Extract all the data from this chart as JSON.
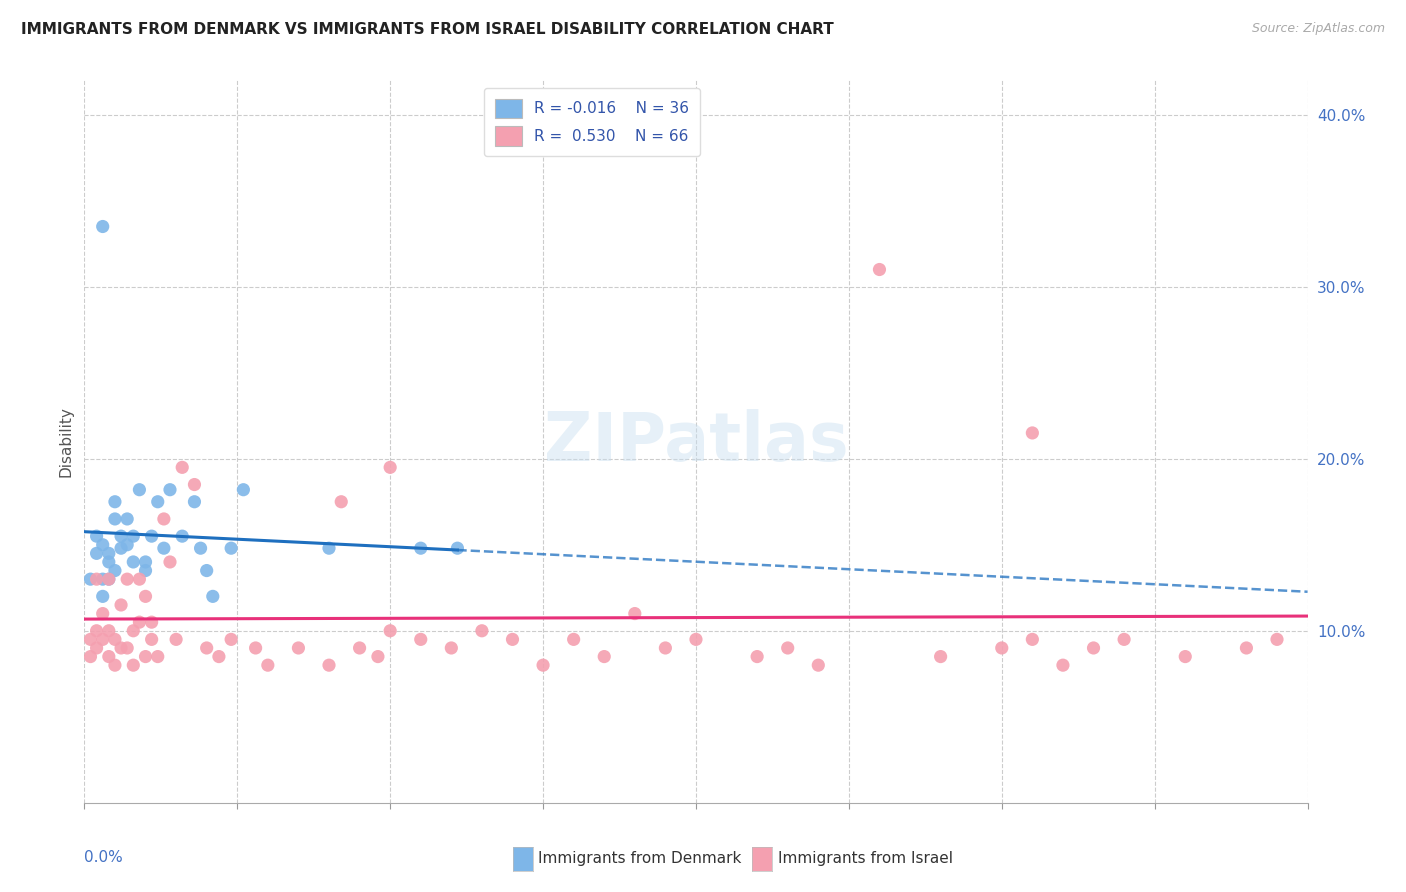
{
  "title": "IMMIGRANTS FROM DENMARK VS IMMIGRANTS FROM ISRAEL DISABILITY CORRELATION CHART",
  "source": "Source: ZipAtlas.com",
  "ylabel": "Disability",
  "legend_label1": "Immigrants from Denmark",
  "legend_label2": "Immigrants from Israel",
  "r1": -0.016,
  "n1": 36,
  "r2": 0.53,
  "n2": 66,
  "color_denmark": "#7EB6E8",
  "color_israel": "#F4A0B0",
  "line_denmark": "#1E6FBF",
  "line_israel": "#E8317A",
  "xlim": [
    0.0,
    0.2
  ],
  "ylim": [
    0.0,
    0.42
  ],
  "denmark_x": [
    0.001,
    0.002,
    0.002,
    0.003,
    0.003,
    0.003,
    0.004,
    0.004,
    0.004,
    0.005,
    0.005,
    0.005,
    0.006,
    0.006,
    0.007,
    0.007,
    0.008,
    0.008,
    0.009,
    0.01,
    0.01,
    0.011,
    0.012,
    0.013,
    0.014,
    0.016,
    0.018,
    0.019,
    0.02,
    0.021,
    0.024,
    0.026,
    0.04,
    0.055,
    0.061,
    0.003
  ],
  "denmark_y": [
    0.13,
    0.155,
    0.145,
    0.15,
    0.13,
    0.12,
    0.14,
    0.145,
    0.13,
    0.175,
    0.165,
    0.135,
    0.155,
    0.148,
    0.165,
    0.15,
    0.14,
    0.155,
    0.182,
    0.14,
    0.135,
    0.155,
    0.175,
    0.148,
    0.182,
    0.155,
    0.175,
    0.148,
    0.135,
    0.12,
    0.148,
    0.182,
    0.148,
    0.148,
    0.148,
    0.335
  ],
  "israel_x": [
    0.001,
    0.001,
    0.002,
    0.002,
    0.002,
    0.003,
    0.003,
    0.004,
    0.004,
    0.004,
    0.005,
    0.005,
    0.006,
    0.006,
    0.007,
    0.007,
    0.008,
    0.008,
    0.009,
    0.009,
    0.01,
    0.01,
    0.011,
    0.011,
    0.012,
    0.013,
    0.014,
    0.015,
    0.016,
    0.018,
    0.02,
    0.022,
    0.024,
    0.028,
    0.03,
    0.035,
    0.04,
    0.042,
    0.045,
    0.048,
    0.05,
    0.055,
    0.06,
    0.065,
    0.07,
    0.075,
    0.08,
    0.085,
    0.09,
    0.095,
    0.1,
    0.11,
    0.115,
    0.12,
    0.14,
    0.15,
    0.155,
    0.16,
    0.165,
    0.17,
    0.18,
    0.19,
    0.195,
    0.05,
    0.13,
    0.155
  ],
  "israel_y": [
    0.095,
    0.085,
    0.09,
    0.1,
    0.13,
    0.095,
    0.11,
    0.085,
    0.1,
    0.13,
    0.08,
    0.095,
    0.09,
    0.115,
    0.09,
    0.13,
    0.08,
    0.1,
    0.105,
    0.13,
    0.085,
    0.12,
    0.095,
    0.105,
    0.085,
    0.165,
    0.14,
    0.095,
    0.195,
    0.185,
    0.09,
    0.085,
    0.095,
    0.09,
    0.08,
    0.09,
    0.08,
    0.175,
    0.09,
    0.085,
    0.1,
    0.095,
    0.09,
    0.1,
    0.095,
    0.08,
    0.095,
    0.085,
    0.11,
    0.09,
    0.095,
    0.085,
    0.09,
    0.08,
    0.085,
    0.09,
    0.095,
    0.08,
    0.09,
    0.095,
    0.085,
    0.09,
    0.095,
    0.195,
    0.31,
    0.215
  ]
}
